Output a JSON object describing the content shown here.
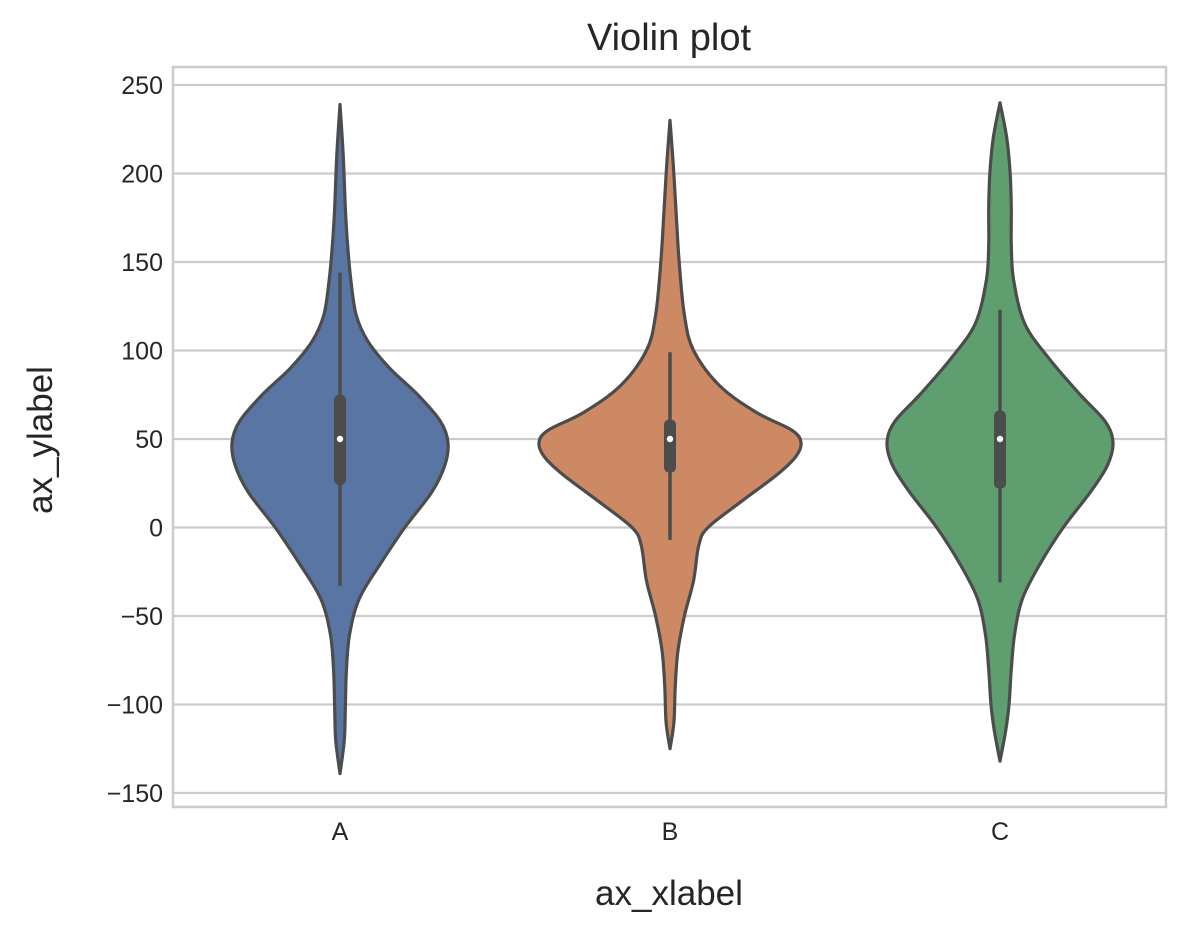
{
  "chart_data": {
    "type": "violin",
    "title": "Violin plot",
    "xlabel": "ax_xlabel",
    "ylabel": "ax_ylabel",
    "categories": [
      "A",
      "B",
      "C"
    ],
    "yticks": [
      -150,
      -100,
      -50,
      0,
      50,
      100,
      150,
      200,
      250
    ],
    "ytick_labels": [
      "−150",
      "−100",
      "−50",
      "0",
      "50",
      "100",
      "150",
      "200",
      "250"
    ],
    "ylim": [
      -158,
      260
    ],
    "grid": true,
    "colors": [
      "#5975a4",
      "#cc8963",
      "#5f9e6e"
    ],
    "line_color": "#4c4c4c",
    "series": [
      {
        "category": "A",
        "min": -139,
        "max": 239,
        "whisker_low": -33,
        "whisker_high": 144,
        "q1": 24,
        "median": 50,
        "q3": 75,
        "density_profile": [
          [
            -139,
            0.0
          ],
          [
            -120,
            0.04
          ],
          [
            -100,
            0.05
          ],
          [
            -80,
            0.06
          ],
          [
            -60,
            0.09
          ],
          [
            -40,
            0.18
          ],
          [
            -20,
            0.38
          ],
          [
            0,
            0.6
          ],
          [
            20,
            0.85
          ],
          [
            35,
            0.97
          ],
          [
            48,
            1.0
          ],
          [
            60,
            0.93
          ],
          [
            75,
            0.72
          ],
          [
            90,
            0.46
          ],
          [
            105,
            0.26
          ],
          [
            120,
            0.15
          ],
          [
            140,
            0.1
          ],
          [
            160,
            0.07
          ],
          [
            180,
            0.05
          ],
          [
            210,
            0.03
          ],
          [
            239,
            0.0
          ]
        ]
      },
      {
        "category": "B",
        "min": -125,
        "max": 230,
        "whisker_low": -7,
        "whisker_high": 99,
        "q1": 31,
        "median": 50,
        "q3": 61,
        "density_profile": [
          [
            -125,
            0.0
          ],
          [
            -110,
            0.03
          ],
          [
            -90,
            0.04
          ],
          [
            -70,
            0.06
          ],
          [
            -50,
            0.11
          ],
          [
            -30,
            0.18
          ],
          [
            -10,
            0.22
          ],
          [
            0,
            0.29
          ],
          [
            15,
            0.55
          ],
          [
            30,
            0.82
          ],
          [
            40,
            0.96
          ],
          [
            48,
            1.0
          ],
          [
            55,
            0.93
          ],
          [
            65,
            0.66
          ],
          [
            80,
            0.38
          ],
          [
            100,
            0.18
          ],
          [
            120,
            0.11
          ],
          [
            150,
            0.07
          ],
          [
            180,
            0.045
          ],
          [
            205,
            0.025
          ],
          [
            230,
            0.0
          ]
        ]
      },
      {
        "category": "C",
        "min": -132,
        "max": 240,
        "whisker_low": -31,
        "whisker_high": 123,
        "q1": 22,
        "median": 50,
        "q3": 66,
        "density_profile": [
          [
            -132,
            0.0
          ],
          [
            -115,
            0.05
          ],
          [
            -100,
            0.08
          ],
          [
            -80,
            0.1
          ],
          [
            -60,
            0.13
          ],
          [
            -40,
            0.2
          ],
          [
            -20,
            0.36
          ],
          [
            0,
            0.56
          ],
          [
            20,
            0.8
          ],
          [
            35,
            0.95
          ],
          [
            48,
            1.0
          ],
          [
            60,
            0.93
          ],
          [
            75,
            0.71
          ],
          [
            95,
            0.44
          ],
          [
            115,
            0.22
          ],
          [
            140,
            0.12
          ],
          [
            160,
            0.1
          ],
          [
            180,
            0.1
          ],
          [
            200,
            0.09
          ],
          [
            220,
            0.06
          ],
          [
            240,
            0.0
          ]
        ]
      }
    ]
  }
}
